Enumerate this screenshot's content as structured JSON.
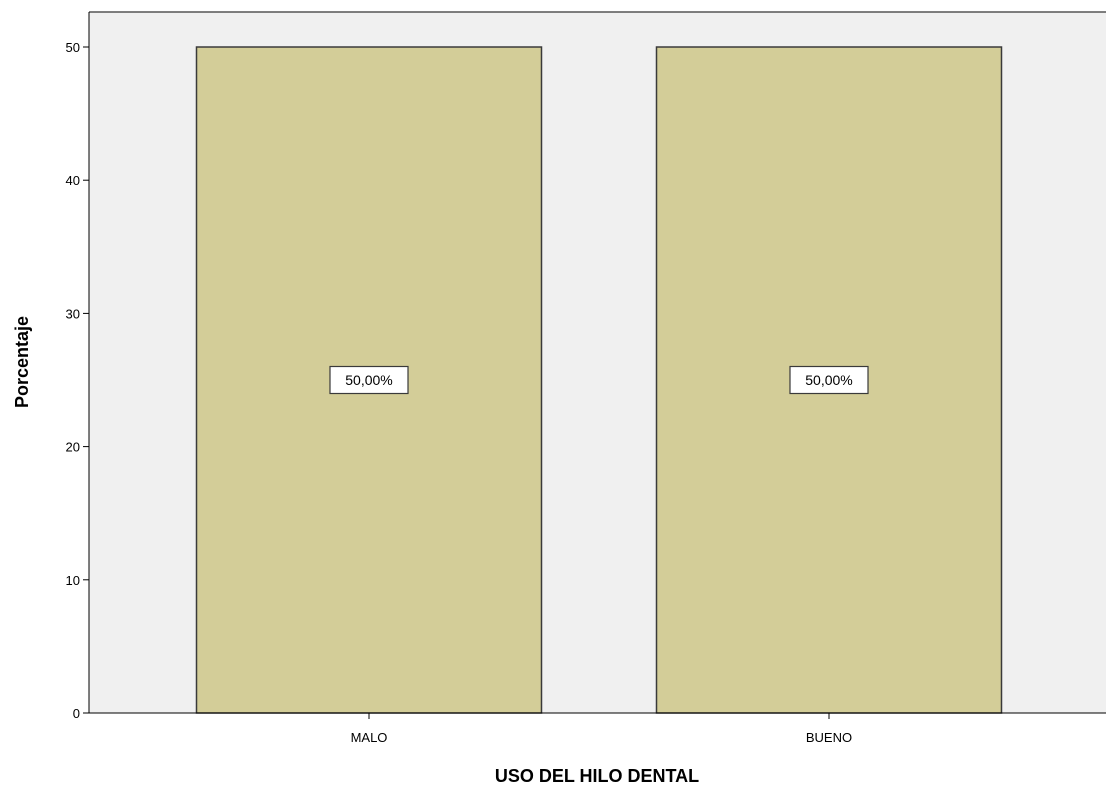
{
  "chart_data": {
    "type": "bar",
    "title": "",
    "xlabel": "USO DEL HILO DENTAL",
    "ylabel": "Porcentaje",
    "categories": [
      "MALO",
      "BUENO"
    ],
    "values": [
      50,
      50
    ],
    "data_labels": [
      "50,00%",
      "50,00%"
    ],
    "ylim": [
      0,
      50
    ],
    "yticks": [
      0,
      10,
      20,
      30,
      40,
      50
    ],
    "ytick_labels": [
      "0",
      "10",
      "20",
      "30",
      "40",
      "50"
    ],
    "grid": false,
    "colors": {
      "bar_fill": "#d3cd98",
      "bar_stroke": "#3a3a3a",
      "plot_background": "#f0f0f0"
    }
  }
}
